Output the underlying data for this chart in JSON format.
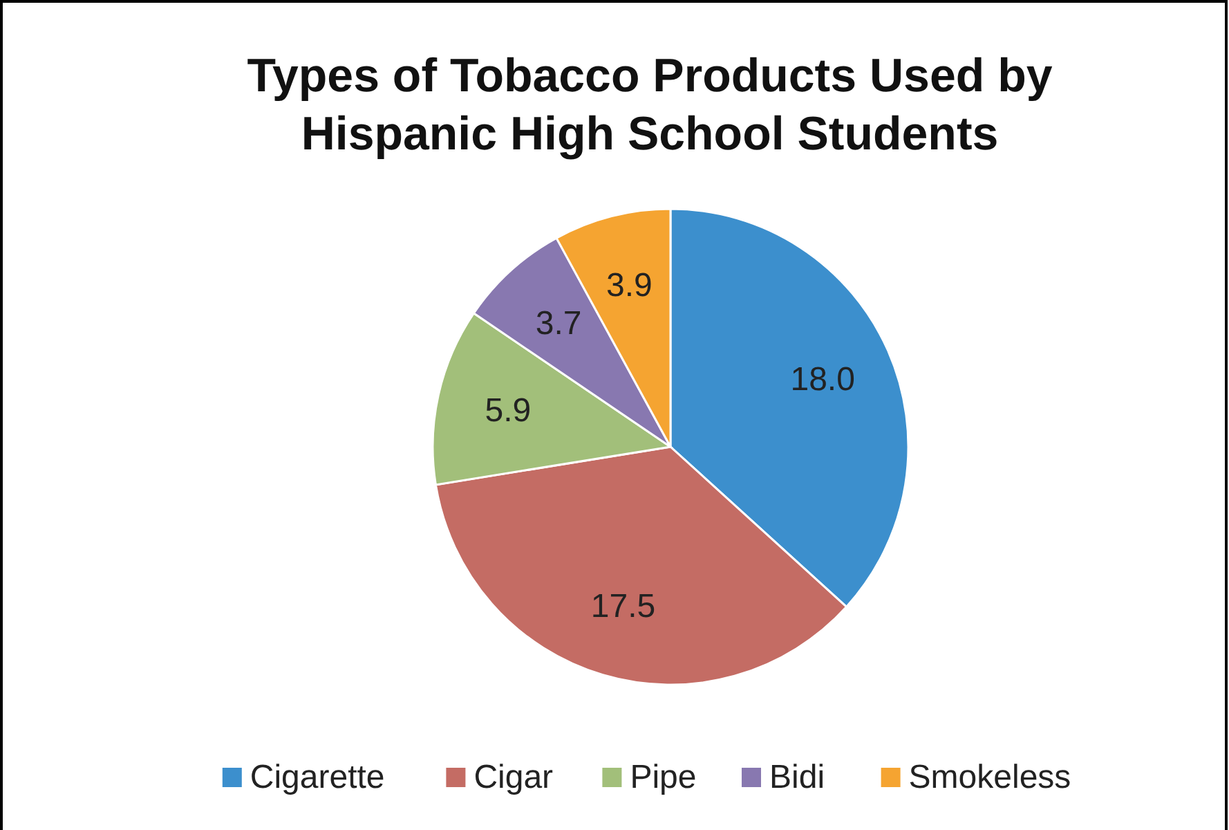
{
  "chart_data": {
    "type": "pie",
    "title": "Types of Tobacco Products Used by Hispanic High School Students",
    "categories": [
      "Cigarette",
      "Cigar",
      "Pipe",
      "Bidi",
      "Smokeless"
    ],
    "values": [
      18.0,
      17.5,
      5.9,
      3.7,
      3.9
    ],
    "value_labels": [
      "18.0",
      "17.5",
      "5.9",
      "3.7",
      "3.9"
    ],
    "colors": [
      "#3c8fcd",
      "#c46c64",
      "#a2bf7a",
      "#8878b0",
      "#f5a431"
    ],
    "legend": "bottom"
  }
}
